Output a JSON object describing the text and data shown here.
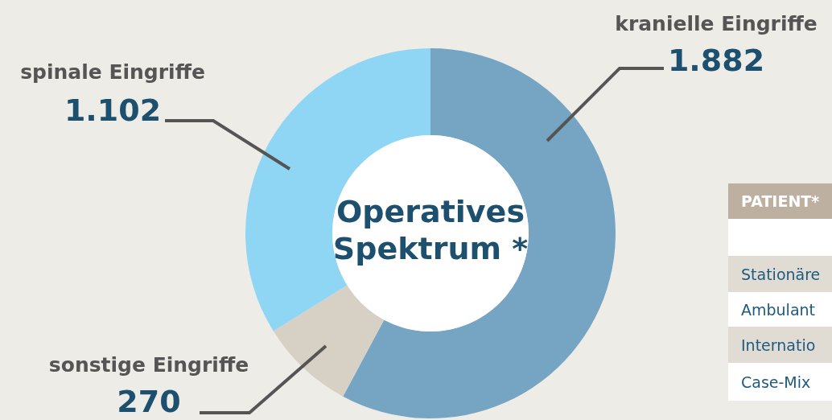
{
  "chart_data": [
    {
      "type": "donut",
      "title": "Operatives Spektrum *",
      "categories": [
        "kranielle Eingriffe",
        "sonstige Eingriffe",
        "spinale Eingriffe"
      ],
      "values": [
        1882,
        270,
        1102
      ],
      "value_labels": [
        "1.882",
        "270",
        "1.102"
      ],
      "colors": [
        "#76a5c4",
        "#d6d0c5",
        "#8fd6f5"
      ]
    },
    {
      "type": "other",
      "annotations": [
        "PATIENT*",
        "Stationäre",
        "Ambulant",
        "Internatio",
        "Case-Mix"
      ]
    }
  ]
}
